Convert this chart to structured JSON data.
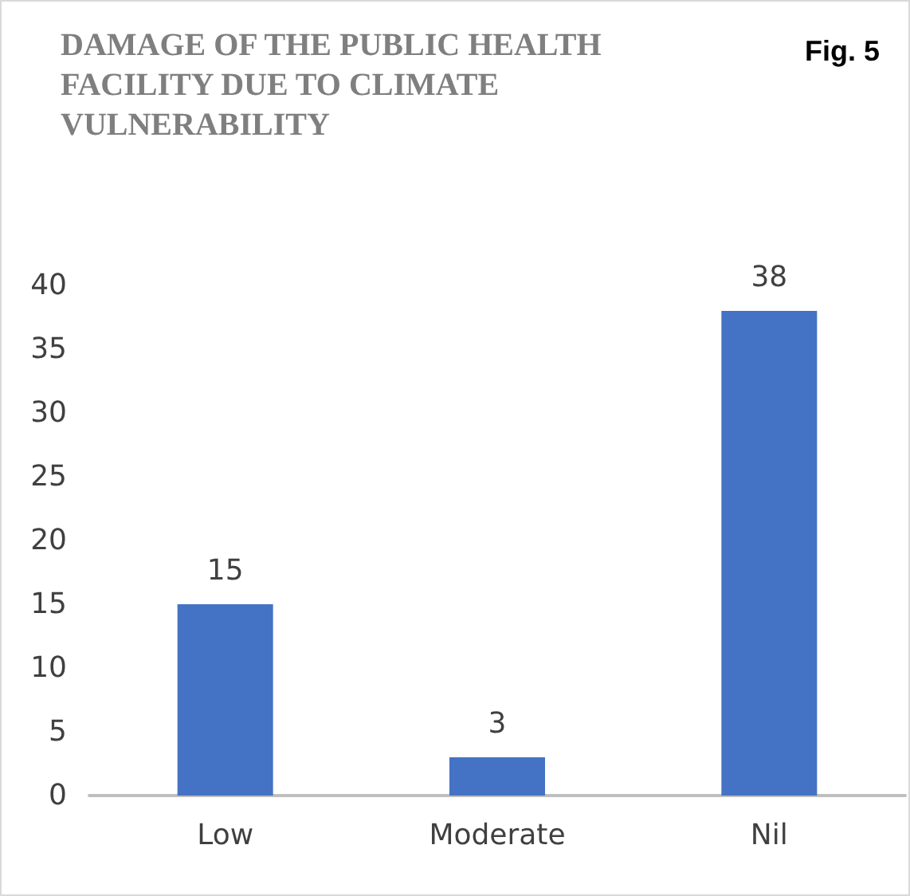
{
  "chart_data": {
    "type": "bar",
    "title": "DAMAGE OF THE PUBLIC HEALTH FACILITY DUE TO CLIMATE VULNERABILITY",
    "annotations": [
      "Fig. 5"
    ],
    "categories": [
      "Low",
      "Moderate",
      "Nil"
    ],
    "values": [
      15,
      3,
      38
    ],
    "color": "#4472c4",
    "ylim": [
      0,
      40
    ],
    "yticks": [
      0,
      5,
      10,
      15,
      20,
      25,
      30,
      35,
      40
    ],
    "grid": false,
    "data_labels": true
  }
}
